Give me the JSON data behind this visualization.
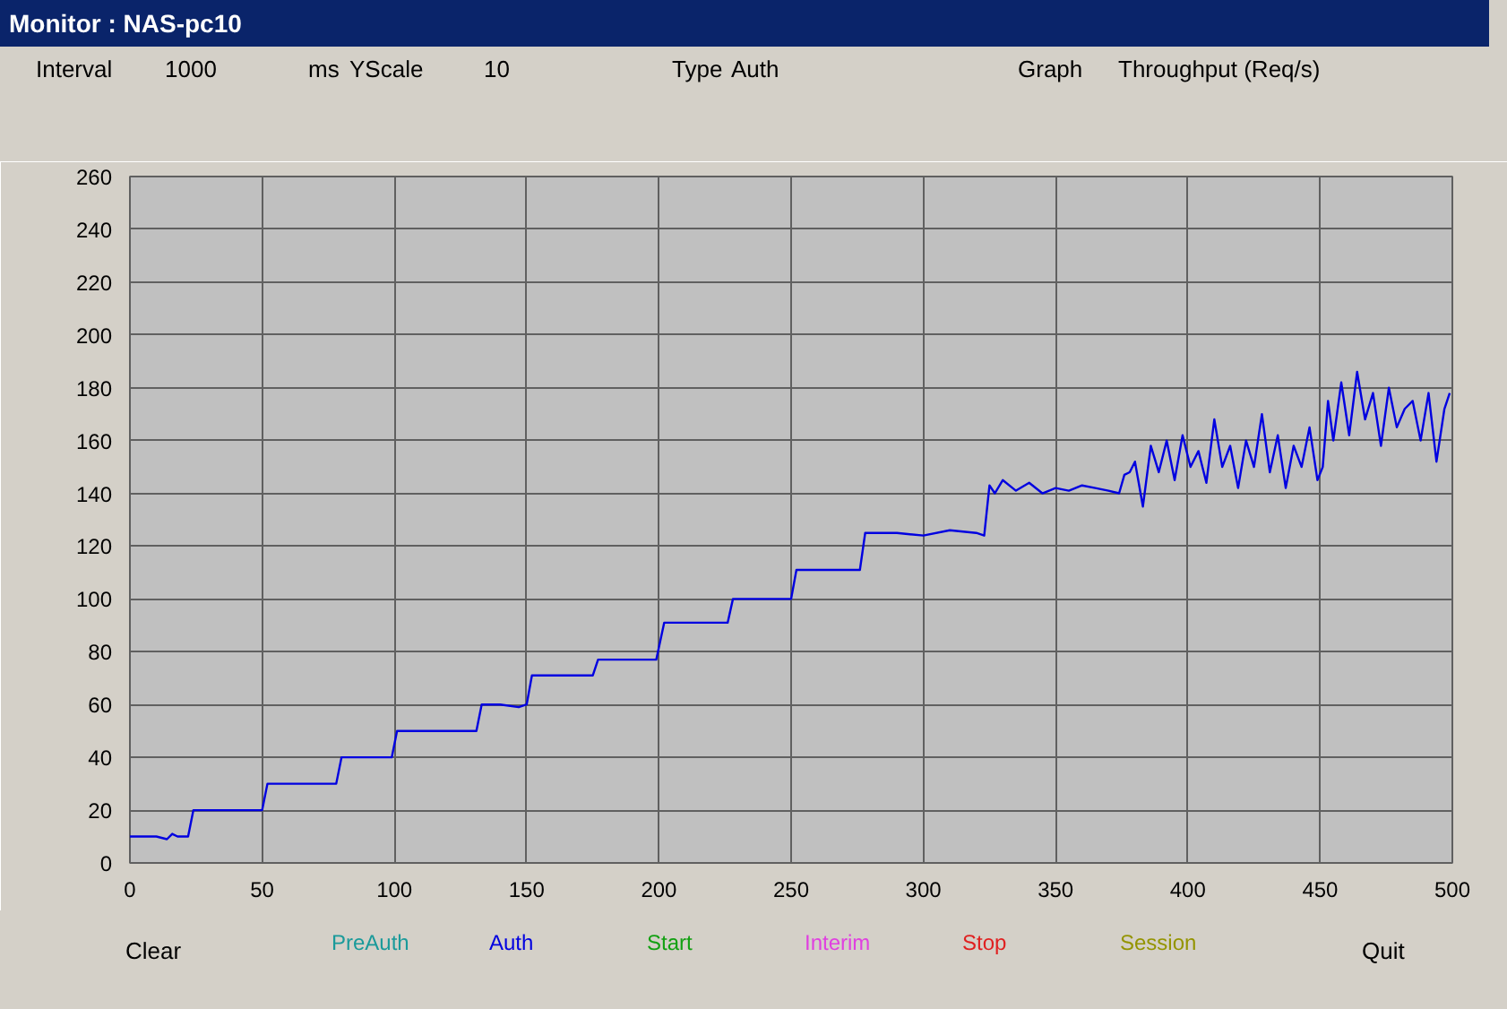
{
  "chart_data": {
    "type": "line",
    "title": "Monitor : NAS-pc10",
    "annotations": [
      "Interval",
      "1000",
      "ms",
      "YScale",
      "10",
      "Type",
      "Auth",
      "Graph",
      "Throughput (Req/s)",
      "Clear",
      "Quit"
    ],
    "xlim": [
      0,
      500
    ],
    "ylim": [
      0,
      260
    ],
    "xticks": [
      0,
      50,
      100,
      150,
      200,
      250,
      300,
      350,
      400,
      450,
      500
    ],
    "yticks": [
      0,
      20,
      40,
      60,
      80,
      100,
      120,
      140,
      160,
      180,
      200,
      220,
      240,
      260
    ],
    "grid": true,
    "series": [
      {
        "name": "PreAuth",
        "color": "#1a9a9a"
      },
      {
        "name": "Auth",
        "color": "#0000e0",
        "x": [
          0,
          10,
          14,
          16,
          18,
          22,
          24,
          26,
          30,
          50,
          52,
          54,
          60,
          70,
          78,
          80,
          82,
          90,
          99,
          101,
          110,
          120,
          131,
          133,
          140,
          147,
          150,
          152,
          160,
          170,
          175,
          177,
          180,
          190,
          199,
          202,
          210,
          220,
          226,
          228,
          240,
          250,
          252,
          260,
          270,
          276,
          278,
          290,
          300,
          310,
          320,
          323,
          325,
          327,
          330,
          335,
          340,
          345,
          350,
          355,
          360,
          365,
          370,
          374,
          376,
          378,
          380,
          383,
          386,
          389,
          392,
          395,
          398,
          401,
          404,
          407,
          410,
          413,
          416,
          419,
          422,
          425,
          428,
          431,
          434,
          437,
          440,
          443,
          446,
          449,
          451,
          453,
          455,
          458,
          461,
          464,
          467,
          470,
          473,
          476,
          479,
          482,
          485,
          488,
          491,
          494,
          497,
          499
        ],
        "values": [
          10,
          10,
          9,
          11,
          10,
          10,
          20,
          20,
          20,
          20,
          30,
          30,
          30,
          30,
          30,
          40,
          40,
          40,
          40,
          50,
          50,
          50,
          50,
          60,
          60,
          59,
          60,
          71,
          71,
          71,
          71,
          77,
          77,
          77,
          77,
          91,
          91,
          91,
          91,
          100,
          100,
          100,
          111,
          111,
          111,
          111,
          125,
          125,
          124,
          126,
          125,
          124,
          143,
          140,
          145,
          141,
          144,
          140,
          142,
          141,
          143,
          142,
          141,
          140,
          147,
          148,
          152,
          135,
          158,
          148,
          160,
          145,
          162,
          150,
          156,
          144,
          168,
          150,
          158,
          142,
          160,
          150,
          170,
          148,
          162,
          142,
          158,
          150,
          165,
          145,
          150,
          175,
          160,
          182,
          162,
          186,
          168,
          178,
          158,
          180,
          165,
          172,
          175,
          160,
          178,
          152,
          172,
          178
        ]
      },
      {
        "name": "Start",
        "color": "#12a012"
      },
      {
        "name": "Interim",
        "color": "#e040e0"
      },
      {
        "name": "Stop",
        "color": "#e02020"
      },
      {
        "name": "Session",
        "color": "#949400"
      }
    ]
  }
}
